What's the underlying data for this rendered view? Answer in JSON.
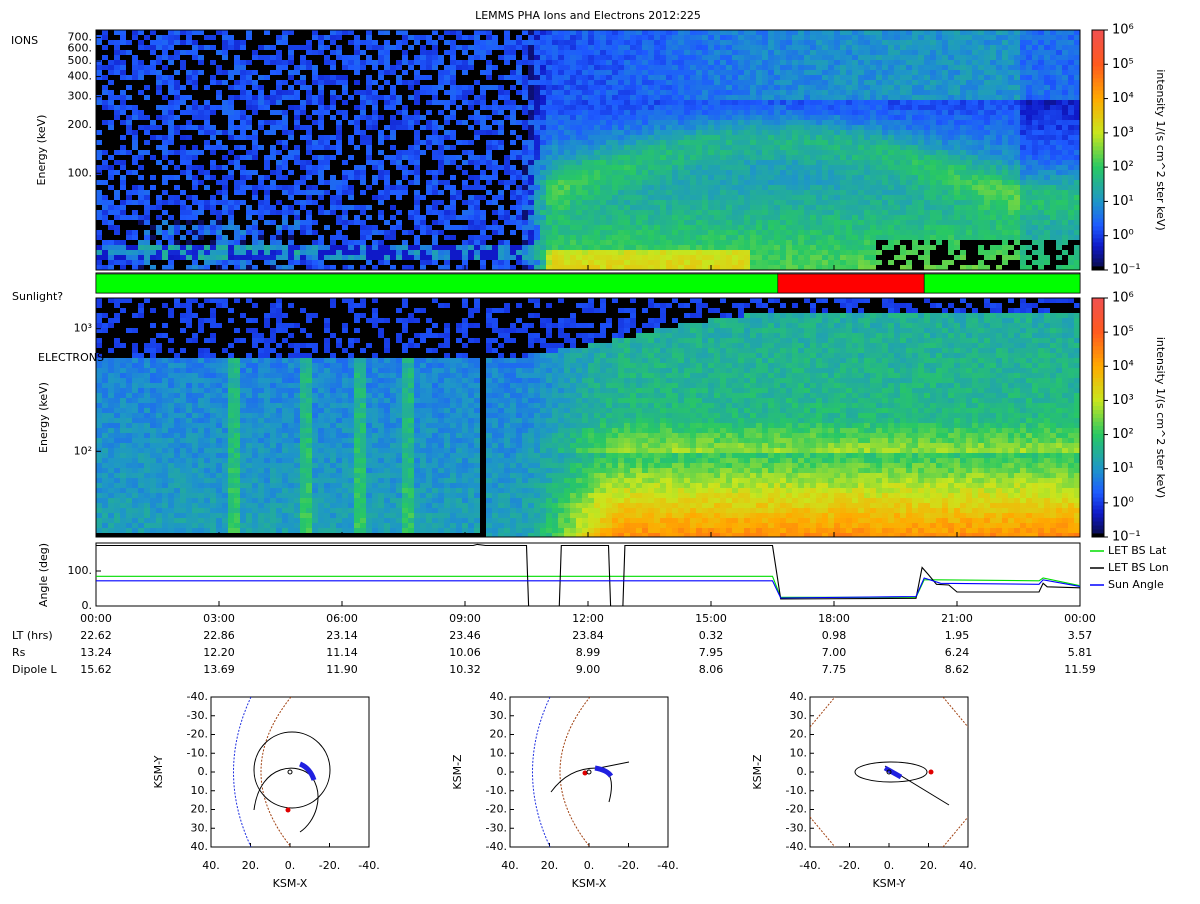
{
  "title": "LEMMS PHA Ions and Electrons  2012:225",
  "time_axis": {
    "xlim": [
      0,
      24
    ],
    "xticks": [
      {
        "value": 0,
        "label": "00:00"
      },
      {
        "value": 3,
        "label": "03:00"
      },
      {
        "value": 6,
        "label": "06:00"
      },
      {
        "value": 9,
        "label": "09:00"
      },
      {
        "value": 12,
        "label": "12:00"
      },
      {
        "value": 15,
        "label": "15:00"
      },
      {
        "value": 18,
        "label": "18:00"
      },
      {
        "value": 21,
        "label": "21:00"
      },
      {
        "value": 24,
        "label": "00:00"
      }
    ]
  },
  "ions": {
    "label": "IONS",
    "ylabel": "Energy (keV)",
    "log": true,
    "ylim": [
      25,
      780
    ],
    "yticks": [
      {
        "value": 100,
        "label": "100."
      },
      {
        "value": 200,
        "label": "200."
      },
      {
        "value": 300,
        "label": "300."
      },
      {
        "value": 400,
        "label": "400."
      },
      {
        "value": 500,
        "label": "500."
      },
      {
        "value": 600,
        "label": "600."
      },
      {
        "value": 700,
        "label": "700."
      }
    ]
  },
  "sunlight": {
    "label": "Sunlight?",
    "segments": [
      {
        "start": 0,
        "end": 16.63,
        "color": "#00ff00"
      },
      {
        "start": 16.63,
        "end": 20.2,
        "color": "#ff0000"
      },
      {
        "start": 20.2,
        "end": 24,
        "color": "#00ff00"
      }
    ]
  },
  "electrons": {
    "label": "ELECTRONS",
    "ylabel": "Energy (keV)",
    "log": true,
    "ylim": [
      20,
      1780
    ],
    "yticks": [
      {
        "value": 100,
        "label": "10²"
      },
      {
        "value": 1000,
        "label": "10³"
      }
    ]
  },
  "colorbar": {
    "label": "intensity 1/(s cm^2 ster keV)",
    "log": true,
    "clim": [
      0.1,
      1000000
    ],
    "ticks": [
      {
        "value": 0.1,
        "label": "10⁻¹"
      },
      {
        "value": 1,
        "label": "10⁰"
      },
      {
        "value": 10,
        "label": "10¹"
      },
      {
        "value": 100,
        "label": "10²"
      },
      {
        "value": 1000,
        "label": "10³"
      },
      {
        "value": 10000,
        "label": "10⁴"
      },
      {
        "value": 100000,
        "label": "10⁵"
      },
      {
        "value": 1000000,
        "label": "10⁶"
      }
    ]
  },
  "angle": {
    "ylabel": "Angle (deg)",
    "ylim": [
      0,
      180
    ],
    "yticks": [
      {
        "value": 0,
        "label": "0."
      },
      {
        "value": 100,
        "label": "100."
      }
    ],
    "series": [
      {
        "name": "LET BS Lat",
        "color": "#00dd00",
        "x": [
          0,
          16.5,
          16.7,
          20,
          20.2,
          20.5,
          23,
          23.1,
          24
        ],
        "values": [
          85,
          85,
          25,
          25,
          75,
          75,
          72,
          80,
          58
        ]
      },
      {
        "name": "LET BS Lon",
        "color": "#000000",
        "x": [
          0,
          9.2,
          9.3,
          9.5,
          10.5,
          10.55,
          11.3,
          11.35,
          12.5,
          12.55,
          12.85,
          12.9,
          16.5,
          16.7,
          20,
          20.15,
          20.3,
          20.5,
          20.8,
          21,
          23,
          23.1,
          23.2,
          24
        ],
        "values": [
          173,
          173,
          176,
          173,
          173,
          0,
          0,
          173,
          173,
          0,
          0,
          173,
          173,
          20,
          22,
          110,
          90,
          62,
          60,
          40,
          40,
          65,
          55,
          52
        ]
      },
      {
        "name": "Sun Angle",
        "color": "#0000ff",
        "x": [
          0,
          16.5,
          16.7,
          20,
          20.2,
          20.6,
          23,
          23.1,
          24
        ],
        "values": [
          72,
          72,
          23,
          27,
          80,
          65,
          62,
          75,
          56
        ]
      }
    ]
  },
  "ephemeris": {
    "rows": [
      {
        "label": "LT (hrs)",
        "values": [
          "22.62",
          "22.86",
          "23.14",
          "23.46",
          "23.84",
          "0.32",
          "0.98",
          "1.95",
          "3.57"
        ]
      },
      {
        "label": "Rs",
        "values": [
          "13.24",
          "12.20",
          "11.14",
          "10.06",
          "8.99",
          "7.95",
          "7.00",
          "6.24",
          "5.81"
        ]
      },
      {
        "label": "Dipole L",
        "values": [
          "15.62",
          "13.69",
          "11.90",
          "10.32",
          "9.00",
          "8.06",
          "7.75",
          "8.62",
          "11.59"
        ]
      }
    ]
  },
  "orbits": [
    {
      "xlabel": "KSM-X",
      "ylabel": "KSM-Y",
      "xlim": [
        40,
        -40
      ],
      "ylim": [
        40,
        -40
      ],
      "xticks": [
        {
          "value": 40,
          "label": "40."
        },
        {
          "value": 20,
          "label": "20."
        },
        {
          "value": 0,
          "label": "0."
        },
        {
          "value": -20,
          "label": "-20."
        },
        {
          "value": -40,
          "label": "-40."
        }
      ],
      "yticks": [
        {
          "value": -40,
          "label": "-40."
        },
        {
          "value": -30,
          "label": "-30."
        },
        {
          "value": -20,
          "label": "-20."
        },
        {
          "value": -10,
          "label": "-10."
        },
        {
          "value": 0,
          "label": "0."
        },
        {
          "value": 10,
          "label": "10."
        },
        {
          "value": 20,
          "label": "20."
        },
        {
          "value": 30,
          "label": "30."
        },
        {
          "value": 40,
          "label": "40."
        }
      ]
    },
    {
      "xlabel": "KSM-X",
      "ylabel": "KSM-Z",
      "xlim": [
        40,
        -40
      ],
      "ylim": [
        -40,
        40
      ],
      "xticks": [
        {
          "value": 40,
          "label": "40."
        },
        {
          "value": 20,
          "label": "20."
        },
        {
          "value": 0,
          "label": "0."
        },
        {
          "value": -20,
          "label": "-20."
        },
        {
          "value": -40,
          "label": "-40."
        }
      ],
      "yticks": [
        {
          "value": 40,
          "label": "40."
        },
        {
          "value": 30,
          "label": "30."
        },
        {
          "value": 20,
          "label": "20."
        },
        {
          "value": 10,
          "label": "10."
        },
        {
          "value": 0,
          "label": "0."
        },
        {
          "value": -10,
          "label": "-10."
        },
        {
          "value": -20,
          "label": "-20."
        },
        {
          "value": -30,
          "label": "-30."
        },
        {
          "value": -40,
          "label": "-40."
        }
      ]
    },
    {
      "xlabel": "KSM-Y",
      "ylabel": "KSM-Z",
      "xlim": [
        -40,
        40
      ],
      "ylim": [
        -40,
        40
      ],
      "xticks": [
        {
          "value": -40,
          "label": "-40."
        },
        {
          "value": -20,
          "label": "-20."
        },
        {
          "value": 0,
          "label": "0."
        },
        {
          "value": 20,
          "label": "20."
        },
        {
          "value": 40,
          "label": "40."
        }
      ],
      "yticks": [
        {
          "value": 40,
          "label": "40."
        },
        {
          "value": 30,
          "label": "30."
        },
        {
          "value": 20,
          "label": "20."
        },
        {
          "value": 10,
          "label": "10."
        },
        {
          "value": 0,
          "label": "0."
        },
        {
          "value": -10,
          "label": "-10."
        },
        {
          "value": -20,
          "label": "-20."
        },
        {
          "value": -30,
          "label": "-30."
        },
        {
          "value": -40,
          "label": "-40."
        }
      ]
    }
  ]
}
